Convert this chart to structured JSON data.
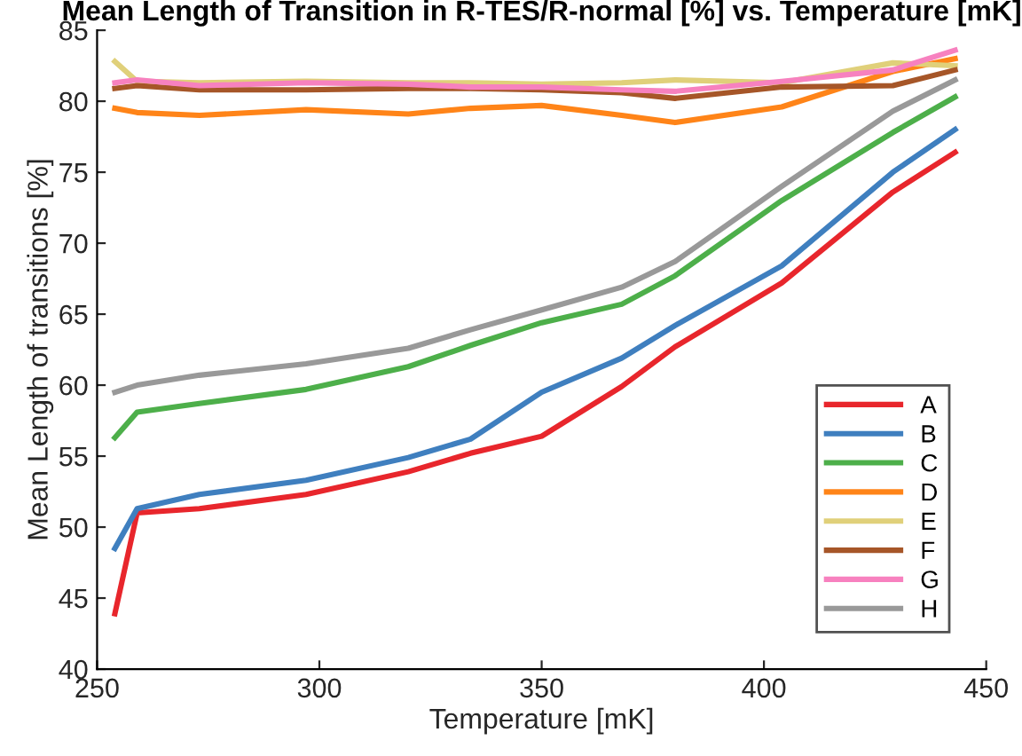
{
  "chart_data": {
    "type": "line",
    "title": "Mean Length of Transition in R-TES/R-normal [%] vs. Temperature [mK]",
    "xlabel": "Temperature [mK]",
    "ylabel": "Mean Length of transitions [%]",
    "x": [
      254,
      259,
      273,
      297,
      320,
      334,
      350,
      368,
      380,
      404,
      429,
      443
    ],
    "series": [
      {
        "name": "A",
        "color": "#e8262c",
        "values": [
          43.9,
          51.0,
          51.3,
          52.3,
          53.9,
          55.2,
          56.4,
          59.9,
          62.7,
          67.2,
          73.6,
          76.4
        ]
      },
      {
        "name": "B",
        "color": "#3f7fbf",
        "values": [
          48.5,
          51.3,
          52.3,
          53.3,
          54.9,
          56.2,
          59.5,
          61.9,
          64.2,
          68.4,
          75.0,
          78.0
        ]
      },
      {
        "name": "C",
        "color": "#4daf4a",
        "values": [
          56.3,
          58.1,
          58.7,
          59.7,
          61.3,
          62.8,
          64.4,
          65.7,
          67.7,
          73.0,
          77.8,
          80.3
        ]
      },
      {
        "name": "D",
        "color": "#ff8418",
        "values": [
          79.5,
          79.2,
          79.0,
          79.4,
          79.1,
          79.5,
          79.7,
          79.0,
          78.5,
          79.6,
          82.1,
          83.0
        ]
      },
      {
        "name": "E",
        "color": "#e0d07a",
        "values": [
          82.8,
          81.4,
          81.3,
          81.4,
          81.3,
          81.3,
          81.2,
          81.3,
          81.5,
          81.3,
          82.7,
          82.5
        ]
      },
      {
        "name": "F",
        "color": "#a65628",
        "values": [
          80.9,
          81.1,
          80.8,
          80.8,
          80.9,
          80.9,
          80.8,
          80.6,
          80.2,
          81.0,
          81.1,
          82.2
        ]
      },
      {
        "name": "G",
        "color": "#f781bf",
        "values": [
          81.3,
          81.5,
          81.1,
          81.3,
          81.2,
          81.0,
          81.0,
          80.8,
          80.7,
          81.4,
          82.2,
          83.6
        ]
      },
      {
        "name": "H",
        "color": "#999999",
        "values": [
          59.5,
          60.0,
          60.7,
          61.5,
          62.6,
          63.9,
          65.3,
          66.9,
          68.7,
          74.0,
          79.3,
          81.5
        ]
      }
    ],
    "xlim": [
      250,
      450
    ],
    "xticks": [
      250,
      300,
      350,
      400,
      450
    ],
    "ylim": [
      40,
      85
    ],
    "yticks": [
      40,
      45,
      50,
      55,
      60,
      65,
      70,
      75,
      80,
      85
    ],
    "legend": "bottom right",
    "marker": "none",
    "line_style": "solid"
  }
}
